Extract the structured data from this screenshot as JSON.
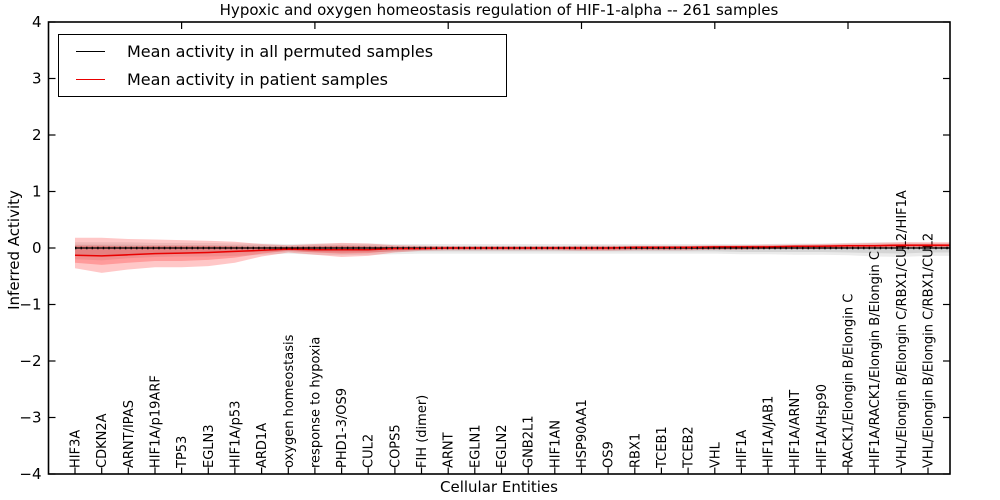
{
  "figure": {
    "title": "Hypoxic and oxygen homeostasis regulation of HIF-1-alpha -- 261 samples",
    "xlabel": "Cellular Entities",
    "ylabel": "Inferred Activity",
    "legend_items": [
      {
        "label": "Mean activity in all permuted samples",
        "color": "#000000"
      },
      {
        "label": "Mean activity in patient samples",
        "color": "#e90000"
      }
    ]
  },
  "chart_data": {
    "type": "line",
    "title": "Hypoxic and oxygen homeostasis regulation of HIF-1-alpha -- 261 samples",
    "xlabel": "Cellular Entities",
    "ylabel": "Inferred Activity",
    "ylim": [
      -4,
      4
    ],
    "yticks": [
      4,
      3,
      2,
      1,
      0,
      -1,
      -2,
      -3,
      -4
    ],
    "ytick_labels": [
      "4",
      "3",
      "2",
      "1",
      "0",
      "−1",
      "−2",
      "−3",
      "−4"
    ],
    "grid": false,
    "legend_position": "upper left",
    "frame_color": "#000000",
    "categories": [
      "HIF3A",
      "CDKN2A",
      "ARNT/IPAS",
      "HIF1A/p19ARF",
      "TP53",
      "EGLN3",
      "HIF1A/p53",
      "ARD1A",
      "oxygen homeostasis",
      "response to hypoxia",
      "PHD1-3/OS9",
      "CUL2",
      "COPS5",
      "FIH (dimer)",
      "ARNT",
      "EGLN1",
      "EGLN2",
      "GNB2L1",
      "HIF1AN",
      "HSP90AA1",
      "OS9",
      "RBX1",
      "TCEB1",
      "TCEB2",
      "VHL",
      "HIF1A",
      "HIF1A/JAB1",
      "HIF1A/ARNT",
      "HIF1A/Hsp90",
      "RACK1/Elongin B/Elongin C",
      "HIF1A/RACK1/Elongin B/Elongin C",
      "VHL/Elongin B/Elongin C/RBX1/CUL2/HIF1A",
      "VHL/Elongin B/Elongin C/RBX1/CUL2"
    ],
    "top_tick_indices": [
      4,
      9,
      14,
      19,
      24,
      29
    ],
    "series": [
      {
        "name": "Mean activity in all permuted samples",
        "color": "#000000",
        "style": "solid-with-dot-markers",
        "values": [
          0,
          0,
          0,
          0,
          0,
          0,
          0,
          0,
          0,
          0,
          0,
          0,
          0,
          0,
          0,
          0,
          0,
          0,
          0,
          0,
          0,
          0,
          0,
          0,
          0,
          0,
          0,
          0,
          0,
          0,
          0,
          0,
          0
        ]
      },
      {
        "name": "Mean activity in patient samples",
        "color": "#e90000",
        "style": "solid",
        "values": [
          -0.13,
          -0.14,
          -0.12,
          -0.1,
          -0.09,
          -0.08,
          -0.06,
          -0.04,
          -0.02,
          -0.03,
          -0.03,
          -0.03,
          -0.01,
          -0.01,
          0,
          0,
          0,
          0,
          0,
          0,
          0,
          0.01,
          0.01,
          0.01,
          0.02,
          0.02,
          0.02,
          0.03,
          0.03,
          0.04,
          0.04,
          0.05,
          0.05
        ]
      }
    ],
    "bands": [
      {
        "name": "permuted-samples-spread-outer",
        "color": "rgba(0,0,0,0.08)",
        "hi": [
          0.1,
          0.1,
          0.1,
          0.09,
          0.09,
          0.09,
          0.08,
          0.08,
          0.07,
          0.08,
          0.08,
          0.08,
          0.07,
          0.07,
          0.07,
          0.07,
          0.07,
          0.07,
          0.07,
          0.07,
          0.07,
          0.07,
          0.07,
          0.07,
          0.07,
          0.07,
          0.07,
          0.08,
          0.08,
          0.09,
          0.1,
          0.1,
          0.09
        ],
        "lo": [
          -0.2,
          -0.22,
          -0.18,
          -0.16,
          -0.15,
          -0.15,
          -0.14,
          -0.12,
          -0.1,
          -0.12,
          -0.13,
          -0.12,
          -0.11,
          -0.1,
          -0.1,
          -0.1,
          -0.1,
          -0.1,
          -0.1,
          -0.1,
          -0.1,
          -0.1,
          -0.1,
          -0.1,
          -0.1,
          -0.11,
          -0.11,
          -0.12,
          -0.12,
          -0.13,
          -0.15,
          -0.16,
          -0.14
        ]
      },
      {
        "name": "permuted-samples-spread-inner",
        "color": "rgba(0,0,0,0.09)",
        "hi": [
          0.06,
          0.06,
          0.06,
          0.05,
          0.05,
          0.05,
          0.05,
          0.05,
          0.04,
          0.05,
          0.05,
          0.05,
          0.04,
          0.04,
          0.04,
          0.04,
          0.04,
          0.04,
          0.04,
          0.04,
          0.04,
          0.04,
          0.04,
          0.04,
          0.04,
          0.04,
          0.04,
          0.05,
          0.05,
          0.05,
          0.06,
          0.06,
          0.05
        ],
        "lo": [
          -0.12,
          -0.13,
          -0.11,
          -0.1,
          -0.09,
          -0.09,
          -0.08,
          -0.07,
          -0.06,
          -0.07,
          -0.08,
          -0.07,
          -0.07,
          -0.06,
          -0.06,
          -0.06,
          -0.06,
          -0.06,
          -0.06,
          -0.06,
          -0.06,
          -0.06,
          -0.06,
          -0.06,
          -0.06,
          -0.07,
          -0.07,
          -0.07,
          -0.07,
          -0.08,
          -0.09,
          -0.1,
          -0.08
        ]
      },
      {
        "name": "patient-samples-spread-outer",
        "color": "rgba(255,0,0,0.22)",
        "hi": [
          0.18,
          0.18,
          0.16,
          0.15,
          0.14,
          0.13,
          0.11,
          0.07,
          0.05,
          0.07,
          0.09,
          0.08,
          0.05,
          0.04,
          0.03,
          0.03,
          0.03,
          0.03,
          0.03,
          0.04,
          0.04,
          0.04,
          0.04,
          0.04,
          0.05,
          0.05,
          0.06,
          0.06,
          0.07,
          0.08,
          0.09,
          0.1,
          0.1
        ],
        "lo": [
          -0.36,
          -0.44,
          -0.38,
          -0.34,
          -0.34,
          -0.32,
          -0.26,
          -0.15,
          -0.08,
          -0.12,
          -0.16,
          -0.14,
          -0.08,
          -0.05,
          -0.04,
          -0.04,
          -0.04,
          -0.04,
          -0.04,
          -0.05,
          -0.05,
          -0.04,
          -0.04,
          -0.04,
          -0.03,
          -0.03,
          -0.02,
          -0.02,
          -0.02,
          -0.01,
          -0.01,
          0,
          0
        ]
      },
      {
        "name": "patient-samples-spread-inner",
        "color": "rgba(255,0,0,0.22)",
        "hi": [
          0.04,
          0.04,
          0.03,
          0.04,
          0.04,
          0.04,
          0.03,
          0.02,
          0.02,
          0.03,
          0.04,
          0.03,
          0.02,
          0.02,
          0.02,
          0.02,
          0.02,
          0.02,
          0.02,
          0.02,
          0.02,
          0.03,
          0.03,
          0.03,
          0.03,
          0.04,
          0.04,
          0.04,
          0.05,
          0.06,
          0.06,
          0.07,
          0.07
        ],
        "lo": [
          -0.26,
          -0.3,
          -0.26,
          -0.23,
          -0.23,
          -0.21,
          -0.17,
          -0.1,
          -0.05,
          -0.08,
          -0.1,
          -0.09,
          -0.05,
          -0.03,
          -0.02,
          -0.02,
          -0.02,
          -0.02,
          -0.02,
          -0.03,
          -0.03,
          -0.02,
          -0.02,
          -0.02,
          -0.01,
          -0.01,
          0,
          0,
          0,
          0.01,
          0.01,
          0.02,
          0.02
        ]
      }
    ]
  }
}
